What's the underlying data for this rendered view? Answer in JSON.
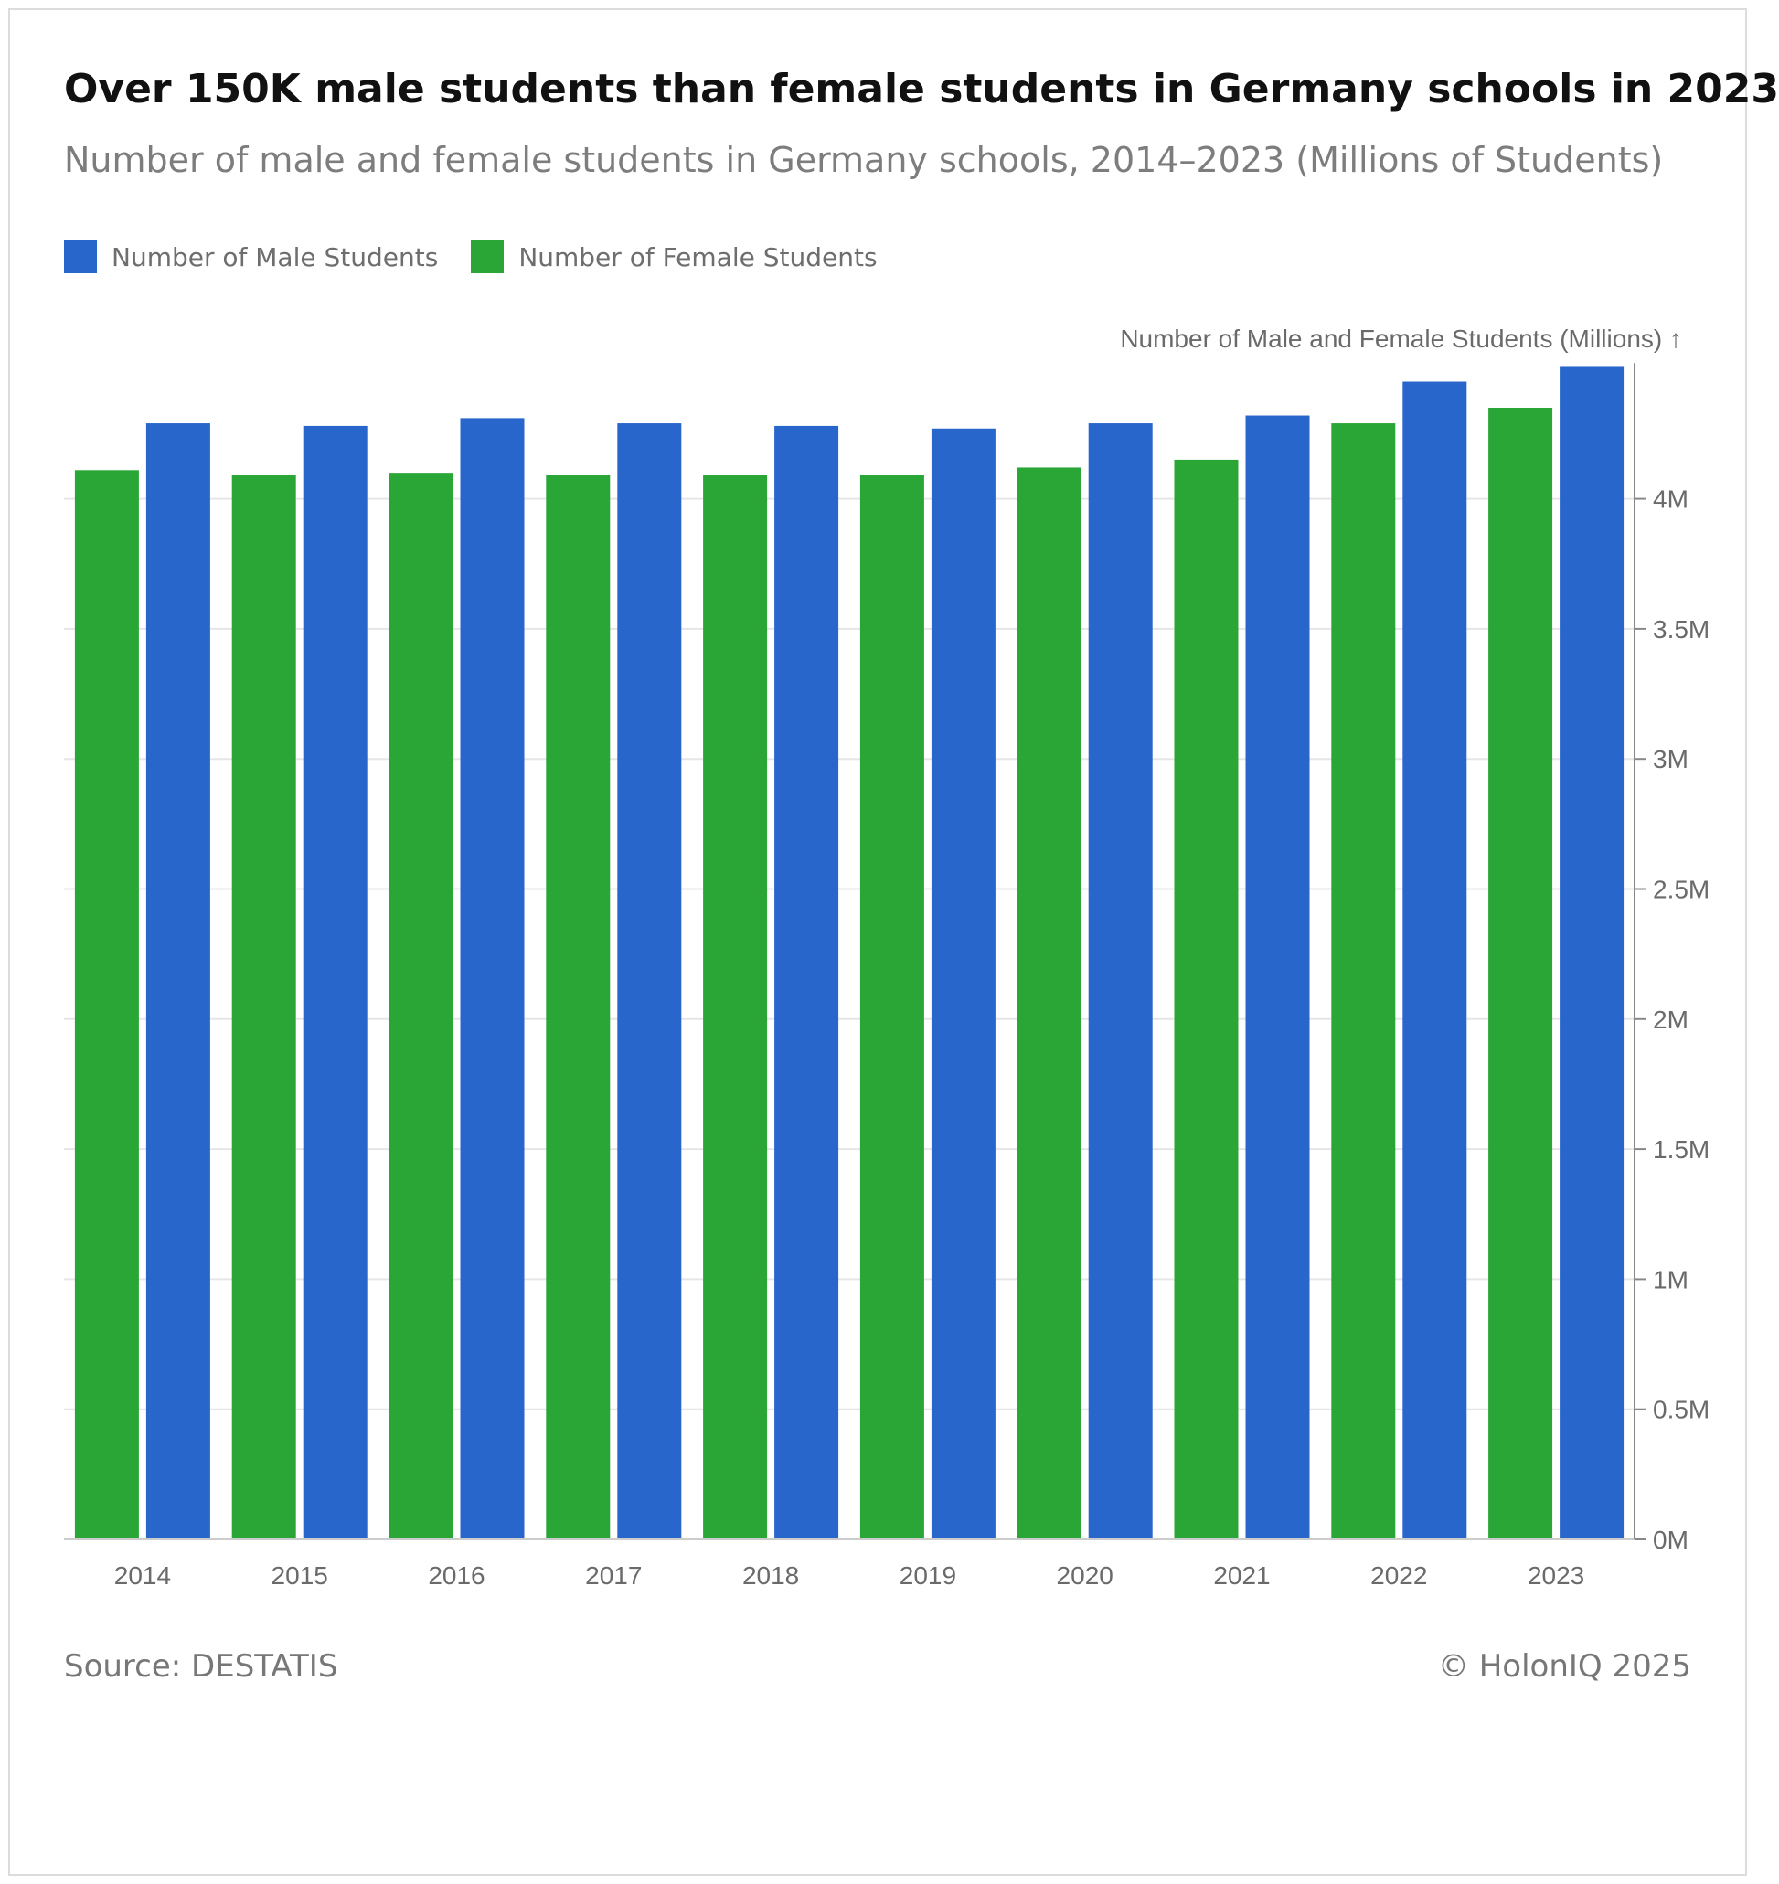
{
  "header": {
    "title": "Over 150K male students than female students in Germany schools in 2023",
    "subtitle": "Number of male and female students in Germany schools, 2014–2023 (Millions of Students)"
  },
  "legend": {
    "items": [
      {
        "label": "Number of Male Students",
        "color": "#2966cc"
      },
      {
        "label": "Number of Female Students",
        "color": "#2aa636"
      }
    ]
  },
  "footer": {
    "source": "Source: DESTATIS",
    "copyright": "© HolonIQ 2025"
  },
  "chart_data": {
    "type": "bar",
    "title": "Over 150K male students than female students in Germany schools in 2023",
    "subtitle": "Number of male and female students in Germany schools, 2014–2023 (Millions of Students)",
    "xlabel": "",
    "ylabel": "Number of Male and Female Students (Millions) ↑",
    "y_axis_position": "right",
    "ylim": [
      0,
      4.5
    ],
    "y_ticks": [
      0,
      0.5,
      1,
      1.5,
      2,
      2.5,
      3,
      3.5,
      4
    ],
    "y_tick_labels": [
      "0M",
      "0.5M",
      "1M",
      "1.5M",
      "2M",
      "2.5M",
      "3M",
      "3.5M",
      "4M"
    ],
    "grid": true,
    "legend_position": "top-left",
    "categories": [
      "2014",
      "2015",
      "2016",
      "2017",
      "2018",
      "2019",
      "2020",
      "2021",
      "2022",
      "2023"
    ],
    "series": [
      {
        "name": "Number of Female Students",
        "color": "#2aa636",
        "values": [
          4.11,
          4.09,
          4.1,
          4.09,
          4.09,
          4.09,
          4.12,
          4.15,
          4.29,
          4.35
        ]
      },
      {
        "name": "Number of Male Students",
        "color": "#2966cc",
        "values": [
          4.29,
          4.28,
          4.31,
          4.29,
          4.28,
          4.27,
          4.29,
          4.32,
          4.45,
          4.51
        ]
      }
    ]
  }
}
